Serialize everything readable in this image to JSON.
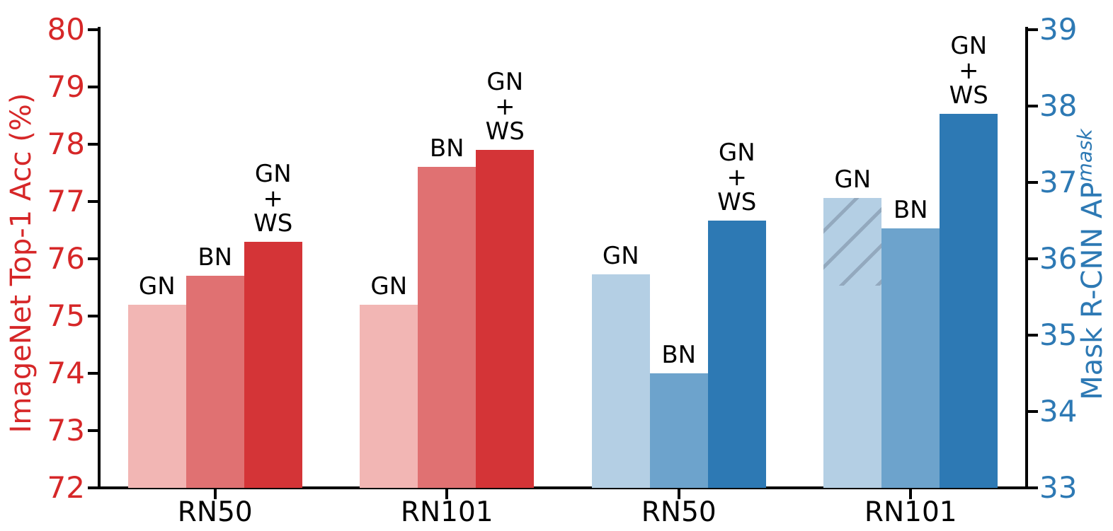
{
  "chart_data": {
    "type": "bar",
    "title": "",
    "categories": [
      "RN50",
      "RN101",
      "RN50",
      "RN101"
    ],
    "series_labels": [
      "GN",
      "BN",
      "GN+WS"
    ],
    "left_axis": {
      "label": "ImageNet Top-1 Acc (%)",
      "color": "#d62728",
      "min": 72,
      "max": 80,
      "ticks": [
        72,
        73,
        74,
        75,
        76,
        77,
        78,
        79,
        80
      ]
    },
    "right_axis": {
      "label": "Mask R-CNN AP",
      "label_superscript": "mask",
      "color": "#2d79b4",
      "min": 33,
      "max": 39,
      "ticks": [
        33,
        34,
        35,
        36,
        37,
        38,
        39
      ]
    },
    "palette": {
      "red_light": "#f2b6b4",
      "red_mid": "#e07172",
      "red_dark": "#d43437",
      "blue_light": "#b4cfe4",
      "blue_mid": "#6da3cc",
      "blue_dark": "#2d79b4",
      "hatch_line": "#93a9be"
    },
    "groups": [
      {
        "category": "RN50",
        "axis": "left",
        "bars": [
          {
            "label_lines": [
              "GN"
            ],
            "value": 75.2,
            "color": "#f2b6b4"
          },
          {
            "label_lines": [
              "BN"
            ],
            "value": 75.7,
            "color": "#e07172"
          },
          {
            "label_lines": [
              "GN",
              "+",
              "WS"
            ],
            "value": 76.3,
            "color": "#d43437"
          }
        ]
      },
      {
        "category": "RN101",
        "axis": "left",
        "bars": [
          {
            "label_lines": [
              "GN"
            ],
            "value": 75.2,
            "color": "#f2b6b4"
          },
          {
            "label_lines": [
              "BN"
            ],
            "value": 77.6,
            "color": "#e07172"
          },
          {
            "label_lines": [
              "GN",
              "+",
              "WS"
            ],
            "value": 77.9,
            "color": "#d43437"
          }
        ]
      },
      {
        "category": "RN50",
        "axis": "right",
        "bars": [
          {
            "label_lines": [
              "GN"
            ],
            "value": 35.8,
            "color": "#b4cfe4"
          },
          {
            "label_lines": [
              "BN"
            ],
            "value": 34.5,
            "color": "#6da3cc"
          },
          {
            "label_lines": [
              "GN",
              "+",
              "WS"
            ],
            "value": 36.5,
            "color": "#2d79b4"
          }
        ]
      },
      {
        "category": "RN101",
        "axis": "right",
        "bars": [
          {
            "label_lines": [
              "GN"
            ],
            "value": 36.8,
            "color": "#b4cfe4",
            "hatch_from": 35.65,
            "hatch_color": "#93a9be"
          },
          {
            "label_lines": [
              "BN"
            ],
            "value": 36.4,
            "color": "#6da3cc"
          },
          {
            "label_lines": [
              "GN",
              "+",
              "WS"
            ],
            "value": 37.9,
            "color": "#2d79b4"
          }
        ]
      }
    ],
    "layout_hints": {
      "grid": false,
      "legend": false,
      "top_spine": false
    }
  }
}
